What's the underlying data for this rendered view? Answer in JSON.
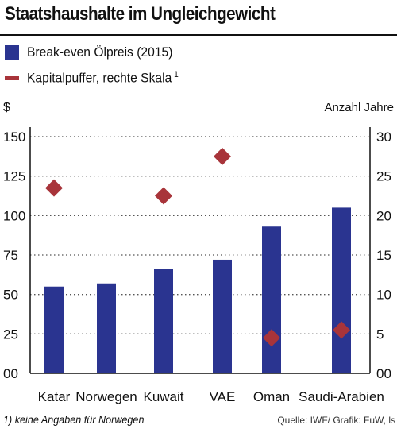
{
  "title": "Staatshaushalte im Ungleichgewicht",
  "footnote": "1) keine Angaben für Norwegen",
  "source": "Quelle: IWF/ Grafik: FuW, ls",
  "colors": {
    "bar": "#2a3490",
    "diamond": "#a8343a",
    "grid": "#555555",
    "text": "#111111"
  },
  "chart_data": {
    "type": "bar",
    "categories": [
      "Katar",
      "Norwegen",
      "Kuwait",
      "VAE",
      "Oman",
      "Saudi-Arabien"
    ],
    "series": [
      {
        "name": "Break-even Ölpreis (2015)",
        "type": "bar",
        "axis": "left",
        "values": [
          55,
          57,
          66,
          72,
          93,
          105
        ]
      },
      {
        "name": "Kapitalpuffer, rechte Skala",
        "legend_sup": "1",
        "type": "scatter",
        "marker": "diamond",
        "axis": "right",
        "values": [
          23.5,
          null,
          22.5,
          27.5,
          4.5,
          5.5
        ]
      }
    ],
    "left_axis": {
      "label": "$",
      "ticks": [
        "00",
        "25",
        "50",
        "75",
        "100",
        "125",
        "150"
      ],
      "ylim": [
        0,
        150
      ]
    },
    "right_axis": {
      "label": "Anzahl Jahre",
      "ticks": [
        "00",
        "5",
        "10",
        "15",
        "20",
        "25",
        "30"
      ],
      "ylim": [
        0,
        30
      ]
    },
    "grid": "dotted horizontal",
    "legend_position": "top-left"
  }
}
